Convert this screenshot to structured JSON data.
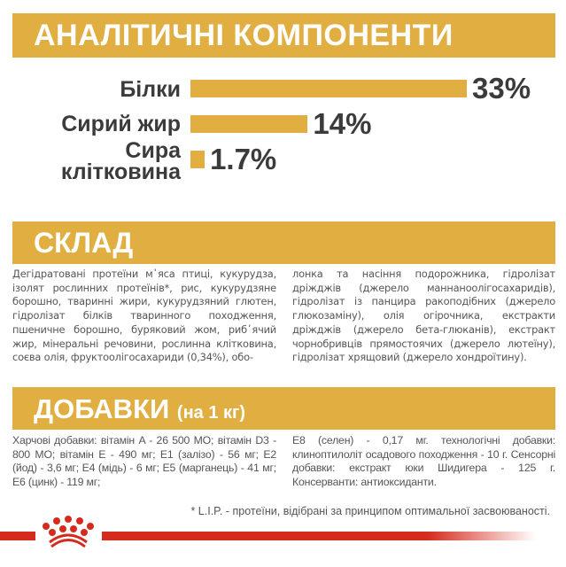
{
  "analytic": {
    "title": "АНАЛІТИЧНІ КОМПОНЕНТИ",
    "items": [
      {
        "label": "Білки",
        "value": 33,
        "display": "33%"
      },
      {
        "label": "Сирий жир",
        "value": 14,
        "display": "14%"
      },
      {
        "label_line1": "Сира",
        "label_line2": "клітковина",
        "value": 1.7,
        "display": "1.7%"
      }
    ]
  },
  "composition": {
    "title": "СКЛАД",
    "text_left": "Дегідратовані протеїни м᾿яса птиці, кукурудза, ізолят рослинних протеїнів*, рис, кукурудзяне борошно, тваринні жири, кукурудзяний глютен, гідролізат білків тваринного походження, пшеничне борошно, буряковий жом, риб᾿ячий жир, мінеральні речовини, рослинна клітковина, соєва олія, фруктоолігосахариди (0,34%), обо-",
    "text_right": "лонка та насіння подорожника, гідролізат дріжджів (джерело маннаноолігосахаридів), гідролізат із панцира ракоподібних (джерело глюкозаміну), олія огірочника, екстракти дріжджів (джерело бета-глюканів), екстракт чорнобривців прямостоячих (джерело лютеїну), гідролізат хрящовий (джерело хондроїтину)."
  },
  "additives": {
    "title": "ДОБАВКИ",
    "subtitle": "(на 1 кг)",
    "text_left": "Харчові добавки: вітамін A - 26 500 МО; вітамін D3 - 800 МО; вітамін E - 490 мг; E1 (залізо) - 56 мг; E2 (йод) - 3,6 мг; E4 (мідь) - 6 мг; E5 (марганець) - 41 мг; E6 (цинк) - 119 мг;",
    "text_right": "E8 (селен) - 0,17 мг. технологічні добавки: клиноптилоліт осадового походження - 10 г. Сенсорні добавки: екстракт юки Шидигера - 125 г. Консерванти: антиоксиданти."
  },
  "footnote": "* L.I.P. - протеїни, відібрані за принципом оптимальної засвоюваності.",
  "colors": {
    "accent": "#E1AE42",
    "brand_red": "#D52B1E",
    "text": "#3b3b3b"
  },
  "logo": "royal-canin-crown-icon"
}
